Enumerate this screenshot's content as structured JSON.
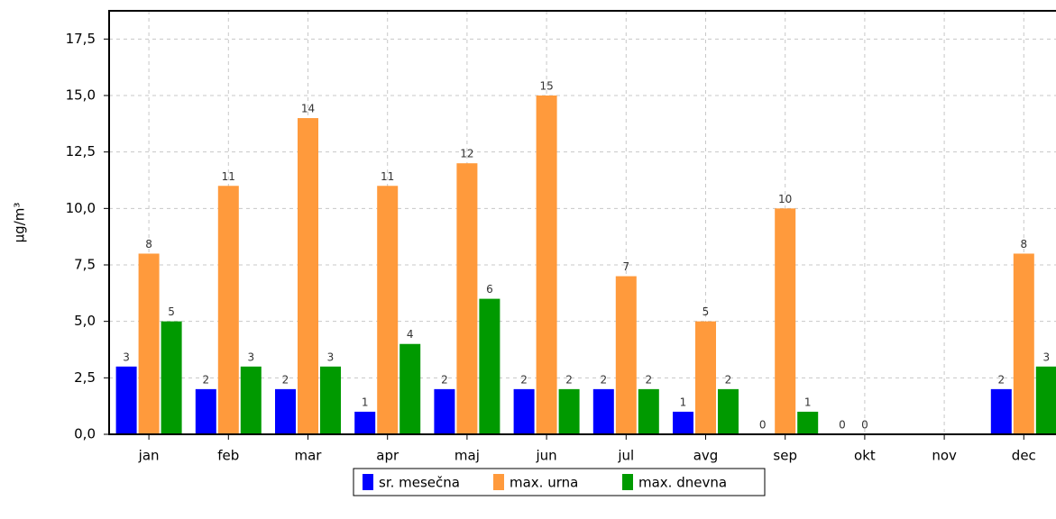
{
  "chart_data": {
    "type": "bar",
    "y_label": "µg/m³",
    "categories": [
      "jan",
      "feb",
      "mar",
      "apr",
      "maj",
      "jun",
      "jul",
      "avg",
      "sep",
      "okt",
      "nov",
      "dec"
    ],
    "series": [
      {
        "name": "sr. mesečna",
        "color": "#0000ff",
        "values": [
          3,
          2,
          2,
          1,
          2,
          2,
          2,
          1,
          0,
          0,
          null,
          2
        ]
      },
      {
        "name": "max. urna",
        "color": "#ff9a3c",
        "values": [
          8,
          11,
          14,
          11,
          12,
          15,
          7,
          5,
          10,
          0,
          null,
          8
        ]
      },
      {
        "name": "max. dnevna",
        "color": "#009a00",
        "values": [
          5,
          3,
          3,
          4,
          6,
          2,
          2,
          2,
          1,
          null,
          null,
          3
        ]
      }
    ],
    "ylim": [
      0,
      18.75
    ],
    "yticks": [
      {
        "value": 0,
        "label": "0,0"
      },
      {
        "value": 2.5,
        "label": "2,5"
      },
      {
        "value": 5,
        "label": "5,0"
      },
      {
        "value": 7.5,
        "label": "7,5"
      },
      {
        "value": 10,
        "label": "10,0"
      },
      {
        "value": 12.5,
        "label": "12,5"
      },
      {
        "value": 15,
        "label": "15,0"
      },
      {
        "value": 17.5,
        "label": "17,5"
      }
    ],
    "grid": true,
    "legend": "bottom"
  }
}
